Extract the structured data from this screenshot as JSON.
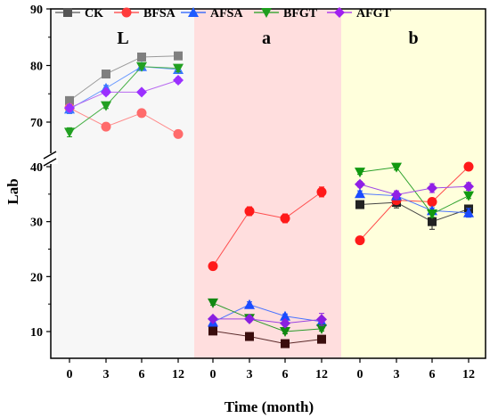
{
  "chart_data": {
    "type": "line",
    "xlabel": "Time (month)",
    "ylabel": "Lab",
    "x_ticks": [
      "0",
      "3",
      "6",
      "12"
    ],
    "y_ticks_lower": [
      10,
      20,
      30,
      40
    ],
    "y_ticks_upper": [
      70,
      80,
      90
    ],
    "y_break": [
      40,
      66
    ],
    "ylim_lower": [
      5,
      41
    ],
    "ylim_upper": [
      66,
      90
    ],
    "panels": [
      {
        "label": "L",
        "background": "#f7f7f7",
        "series": [
          {
            "name": "CK",
            "values": [
              73.8,
              78.5,
              81.5,
              81.7
            ],
            "errors": [
              0.6,
              0.4,
              0.4,
              0.3
            ]
          },
          {
            "name": "BFSA",
            "values": [
              72.5,
              69.2,
              71.6,
              67.9
            ],
            "errors": [
              0.4,
              0.5,
              0.4,
              0.4
            ]
          },
          {
            "name": "AFSA",
            "values": [
              72.3,
              76.0,
              79.8,
              79.3
            ],
            "errors": [
              0.8,
              0.5,
              0.4,
              0.4
            ]
          },
          {
            "name": "BFGT",
            "values": [
              68.2,
              72.9,
              79.8,
              79.5
            ],
            "errors": [
              0.8,
              0.5,
              0.4,
              0.6
            ]
          },
          {
            "name": "AFGT",
            "values": [
              72.5,
              75.3,
              75.3,
              77.4
            ],
            "errors": [
              0.6,
              0.5,
              0.4,
              0.5
            ]
          }
        ]
      },
      {
        "label": "a",
        "background": "#ffdede",
        "series": [
          {
            "name": "CK",
            "values": [
              10.1,
              9.1,
              7.8,
              8.6
            ],
            "errors": [
              0.3,
              0.3,
              0.3,
              0.3
            ]
          },
          {
            "name": "BFSA",
            "values": [
              21.9,
              31.9,
              30.6,
              35.4
            ],
            "errors": [
              0.3,
              0.8,
              0.8,
              0.9
            ]
          },
          {
            "name": "AFSA",
            "values": [
              11.7,
              14.9,
              12.8,
              11.8
            ],
            "errors": [
              0.5,
              0.5,
              0.4,
              0.5
            ]
          },
          {
            "name": "BFGT",
            "values": [
              15.2,
              12.4,
              10.0,
              10.5
            ],
            "errors": [
              0.4,
              0.4,
              0.4,
              0.4
            ]
          },
          {
            "name": "AFGT",
            "values": [
              12.3,
              12.3,
              11.5,
              12.2
            ],
            "errors": [
              0.4,
              0.5,
              0.5,
              1.1
            ]
          }
        ]
      },
      {
        "label": "b",
        "background": "#ffffdc",
        "series": [
          {
            "name": "CK",
            "values": [
              33.1,
              33.5,
              30.0,
              32.3
            ],
            "errors": [
              0.4,
              1.0,
              1.4,
              0.5
            ]
          },
          {
            "name": "BFSA",
            "values": [
              26.6,
              33.9,
              33.6,
              40.0
            ],
            "errors": [
              0.4,
              0.6,
              0.6,
              0.6
            ]
          },
          {
            "name": "AFSA",
            "values": [
              35.1,
              34.7,
              32.0,
              31.6
            ],
            "errors": [
              0.5,
              0.5,
              0.5,
              0.8
            ]
          },
          {
            "name": "BFGT",
            "values": [
              39.0,
              39.9,
              31.4,
              34.7
            ],
            "errors": [
              0.4,
              0.5,
              0.6,
              0.5
            ]
          },
          {
            "name": "AFGT",
            "values": [
              36.8,
              34.9,
              36.1,
              36.4
            ],
            "errors": [
              0.5,
              0.7,
              0.8,
              0.7
            ]
          }
        ]
      }
    ],
    "legend": [
      {
        "name": "CK",
        "color": "#555555",
        "marker": "square"
      },
      {
        "name": "BFSA",
        "color": "#ff3b3b",
        "marker": "circle"
      },
      {
        "name": "AFSA",
        "color": "#1f5bff",
        "marker": "triangle-up"
      },
      {
        "name": "BFGT",
        "color": "#1e9e1e",
        "marker": "triangle-down"
      },
      {
        "name": "AFGT",
        "color": "#a020f0",
        "marker": "diamond"
      }
    ],
    "legend_position": "top-left"
  },
  "series_style": {
    "L": {
      "CK": {
        "line": "#9a9a9a",
        "fill": "#808080"
      },
      "BFSA": {
        "line": "#ff8a8a",
        "fill": "#ff6b6b"
      },
      "AFSA": {
        "line": "#6b9bff",
        "fill": "#3a78ff"
      },
      "BFGT": {
        "line": "#46b046",
        "fill": "#22a022"
      },
      "AFGT": {
        "line": "#b86af0",
        "fill": "#9b30ff"
      }
    },
    "a": {
      "CK": {
        "line": "#5a2a2a",
        "fill": "#3a0d0d"
      },
      "BFSA": {
        "line": "#ff5050",
        "fill": "#ff1a1a"
      },
      "AFSA": {
        "line": "#4a73ff",
        "fill": "#1a4bff"
      },
      "BFGT": {
        "line": "#2a9a2a",
        "fill": "#128812"
      },
      "AFGT": {
        "line": "#9a45e0",
        "fill": "#8a1fe0"
      }
    },
    "b": {
      "CK": {
        "line": "#444444",
        "fill": "#222222"
      },
      "BFSA": {
        "line": "#ff4a4a",
        "fill": "#ff1a1a"
      },
      "AFSA": {
        "line": "#4a73ff",
        "fill": "#1a4bff"
      },
      "BFGT": {
        "line": "#2aa02a",
        "fill": "#119911"
      },
      "AFGT": {
        "line": "#a04ae6",
        "fill": "#9020e6"
      }
    }
  }
}
